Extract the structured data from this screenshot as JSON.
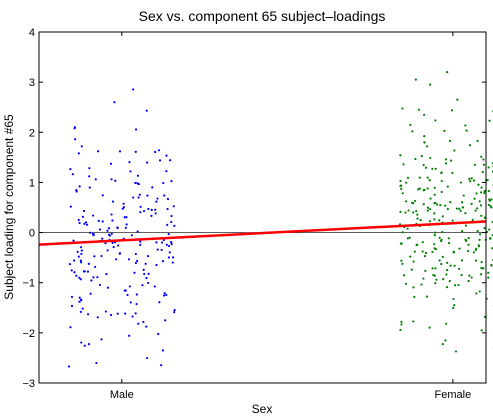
{
  "chart_data": {
    "type": "scatter",
    "title": "Sex vs. component 65 subject–loadings",
    "xlabel": "Sex",
    "ylabel": "Subject loading for component #65",
    "xlim": [
      0.75,
      2.1
    ],
    "ylim": [
      -3,
      4
    ],
    "categories": [
      "Male",
      "Female"
    ],
    "category_x": [
      1,
      2
    ],
    "yticks": [
      4,
      3,
      2,
      1,
      0,
      -1,
      -2,
      -3
    ],
    "ytick_labels": [
      "4",
      "3",
      "2",
      "1",
      "0",
      "−1",
      "−2",
      "−3"
    ],
    "zero_line": 0,
    "regression_line": {
      "x": [
        0.75,
        2.1
      ],
      "y": [
        -0.24,
        0.22
      ],
      "color": "#ff0000"
    },
    "jitter": 0.16,
    "series": [
      {
        "category": "Male",
        "x": 1,
        "color": "#0000ff",
        "n": 220,
        "mean": -0.2,
        "sd": 0.98,
        "seed": 7,
        "highlights": [
          2.6,
          2.1,
          2.08,
          1.72,
          1.58,
          -2.35,
          -2.5,
          -2.6
        ]
      },
      {
        "category": "Female",
        "x": 2,
        "color": "#008000",
        "n": 300,
        "mean": 0.12,
        "sd": 0.92,
        "seed": 23,
        "highlights": [
          3.2,
          3.05,
          2.65,
          2.45,
          2.2,
          -2.15,
          -2.3,
          -1.95
        ]
      }
    ]
  }
}
